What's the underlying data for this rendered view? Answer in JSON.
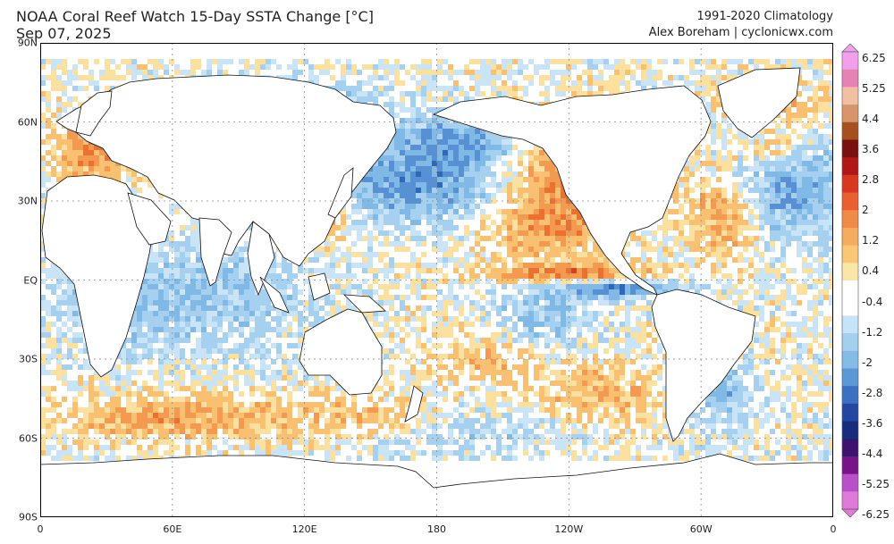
{
  "header": {
    "title": "NOAA Coral Reef Watch 15-Day SSTA Change [°C]",
    "date": "Sep 07, 2025",
    "climatology": "1991-2020 Climatology",
    "credit": "Alex Boreham | cyclonicwx.com"
  },
  "axes": {
    "y_ticks": [
      {
        "label": "90N",
        "lat": 90
      },
      {
        "label": "60N",
        "lat": 60
      },
      {
        "label": "30N",
        "lat": 30
      },
      {
        "label": "EQ",
        "lat": 0
      },
      {
        "label": "30S",
        "lat": -30
      },
      {
        "label": "60S",
        "lat": -60
      },
      {
        "label": "90S",
        "lat": -90
      }
    ],
    "x_ticks": [
      {
        "label": "0",
        "lon": 0
      },
      {
        "label": "60E",
        "lon": 60
      },
      {
        "label": "120E",
        "lon": 120
      },
      {
        "label": "180",
        "lon": 180
      },
      {
        "label": "120W",
        "lon": 240
      },
      {
        "label": "60W",
        "lon": 300
      },
      {
        "label": "0",
        "lon": 360
      }
    ]
  },
  "colorbar": {
    "labels": [
      "6.25",
      "5.25",
      "4.4",
      "3.6",
      "2.8",
      "2",
      "1.2",
      "0.4",
      "-0.4",
      "-1.2",
      "-2",
      "-2.8",
      "-3.6",
      "-4.4",
      "-5.25",
      "-6.25"
    ],
    "colors": [
      "#f2a0ec",
      "#e584b4",
      "#f0c0a0",
      "#d8946a",
      "#a65020",
      "#7a1010",
      "#b01818",
      "#d83820",
      "#e86030",
      "#f08a48",
      "#f6ac60",
      "#f8c878",
      "#fbe6a8",
      "#ffffff",
      "#ffffff",
      "#c6e4f8",
      "#a4d0f0",
      "#84bce8",
      "#5c98d8",
      "#3c70c0",
      "#2448a0",
      "#182c7c",
      "#3c1470",
      "#781488",
      "#b850c8",
      "#e07ad8"
    ]
  },
  "map": {
    "colors": {
      "ocean_warm": [
        "#fbe0a0",
        "#f8c070",
        "#f49a50",
        "#ec7030",
        "#d84020",
        "#b81818"
      ],
      "ocean_cool": [
        "#c8e4f6",
        "#a6d0f0",
        "#80b8e6",
        "#5890d4",
        "#3068b8",
        "#1c3c90"
      ],
      "land": "#ffffff",
      "coast": "#111111"
    }
  }
}
